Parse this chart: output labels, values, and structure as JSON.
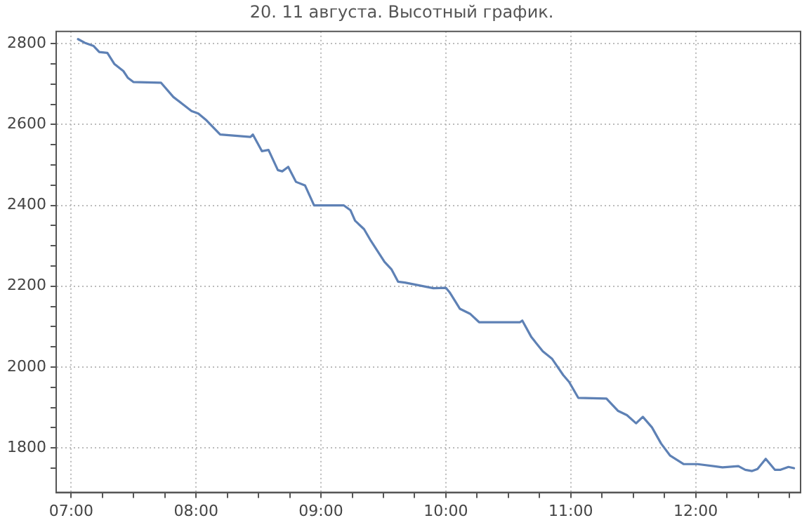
{
  "chart_data": {
    "type": "line",
    "title": "20. 11 августа. Высотный график.",
    "x": [
      7.055,
      7.109,
      7.18,
      7.225,
      7.29,
      7.345,
      7.418,
      7.455,
      7.498,
      7.72,
      7.818,
      7.89,
      7.964,
      8.018,
      8.084,
      8.193,
      8.436,
      8.455,
      8.527,
      8.58,
      8.655,
      8.69,
      8.738,
      8.8,
      8.873,
      8.945,
      9.182,
      9.236,
      9.273,
      9.345,
      9.4,
      9.509,
      9.564,
      9.618,
      9.673,
      9.9,
      10.0,
      10.03,
      10.113,
      10.193,
      10.266,
      10.594,
      10.612,
      10.685,
      10.776,
      10.849,
      10.94,
      10.987,
      11.06,
      11.286,
      11.304,
      11.377,
      11.45,
      11.523,
      11.577,
      11.65,
      11.723,
      11.796,
      11.905,
      12.015,
      12.215,
      12.342,
      12.397,
      12.452,
      12.495,
      12.561,
      12.634,
      12.68,
      12.743,
      12.787
    ],
    "series": [
      {
        "color": "#5e81b5",
        "values": [
          2811,
          2802,
          2794,
          2779,
          2777,
          2750,
          2732,
          2715,
          2705,
          2703,
          2668,
          2651,
          2633,
          2627,
          2610,
          2575,
          2569,
          2575,
          2534,
          2537,
          2487,
          2484,
          2495,
          2458,
          2449,
          2400,
          2400,
          2388,
          2362,
          2341,
          2312,
          2260,
          2242,
          2211,
          2209,
          2195,
          2196,
          2185,
          2144,
          2132,
          2111,
          2111,
          2115,
          2074,
          2039,
          2021,
          1980,
          1963,
          1924,
          1922,
          1916,
          1892,
          1881,
          1861,
          1877,
          1851,
          1811,
          1781,
          1760,
          1760,
          1752,
          1755,
          1746,
          1743,
          1748,
          1773,
          1746,
          1746,
          1753,
          1750
        ]
      }
    ],
    "xlim": [
      6.88,
      12.84
    ],
    "ylim": [
      1690,
      2830
    ],
    "xticks": [
      {
        "value": 7,
        "label": "07:00"
      },
      {
        "value": 7.25,
        "label": null
      },
      {
        "value": 7.5,
        "label": null
      },
      {
        "value": 7.75,
        "label": null
      },
      {
        "value": 8,
        "label": "08:00"
      },
      {
        "value": 8.25,
        "label": null
      },
      {
        "value": 8.5,
        "label": null
      },
      {
        "value": 8.75,
        "label": null
      },
      {
        "value": 9,
        "label": "09:00"
      },
      {
        "value": 9.25,
        "label": null
      },
      {
        "value": 9.5,
        "label": null
      },
      {
        "value": 9.75,
        "label": null
      },
      {
        "value": 10,
        "label": "10:00"
      },
      {
        "value": 10.25,
        "label": null
      },
      {
        "value": 10.5,
        "label": null
      },
      {
        "value": 10.75,
        "label": null
      },
      {
        "value": 11,
        "label": "11:00"
      },
      {
        "value": 11.25,
        "label": null
      },
      {
        "value": 11.5,
        "label": null
      },
      {
        "value": 11.75,
        "label": null
      },
      {
        "value": 12,
        "label": "12:00"
      },
      {
        "value": 12.25,
        "label": null
      },
      {
        "value": 12.5,
        "label": null
      },
      {
        "value": 12.75,
        "label": null
      }
    ],
    "yticks": [
      {
        "value": 1750,
        "label": null
      },
      1800,
      {
        "value": 1850,
        "label": null
      },
      {
        "value": 1900,
        "label": null
      },
      {
        "value": 1950,
        "label": null
      },
      2000,
      {
        "value": 2050,
        "label": null
      },
      {
        "value": 2100,
        "label": null
      },
      {
        "value": 2150,
        "label": null
      },
      2200,
      {
        "value": 2250,
        "label": null
      },
      {
        "value": 2300,
        "label": null
      },
      {
        "value": 2350,
        "label": null
      },
      2400,
      {
        "value": 2450,
        "label": null
      },
      {
        "value": 2500,
        "label": null
      },
      {
        "value": 2550,
        "label": null
      },
      2600,
      {
        "value": 2650,
        "label": null
      },
      {
        "value": 2700,
        "label": null
      },
      {
        "value": 2750,
        "label": null
      },
      2800
    ],
    "grid": true,
    "marker": "none",
    "line_style": "solid",
    "legend": false
  }
}
